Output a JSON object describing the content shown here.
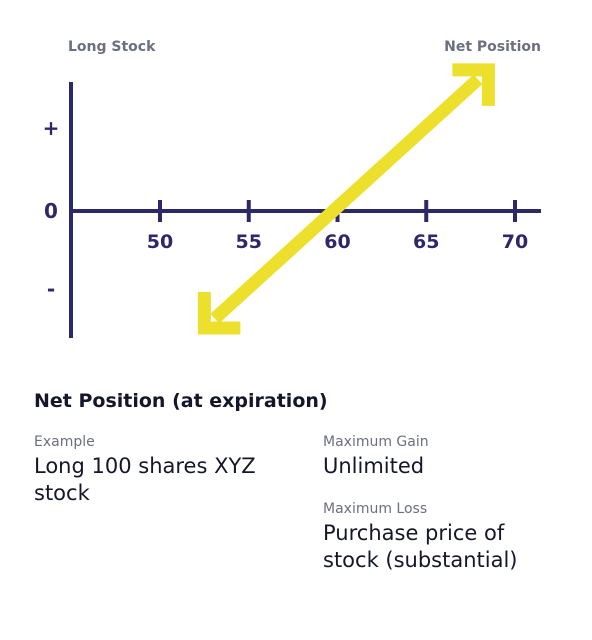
{
  "chart_data": {
    "type": "line",
    "title": "Long Stock",
    "legend_label": "Net Position",
    "y_ticks": [
      "+",
      "0",
      "-"
    ],
    "x_ticks": [
      50,
      55,
      60,
      65,
      70
    ],
    "series": [
      {
        "name": "Net Position",
        "x": [
          52.5,
          68.5
        ],
        "y": [
          -1.5,
          1.7
        ]
      }
    ],
    "breakeven": 60,
    "arrows": "both-ends",
    "line_color": "#ede02c",
    "axis_color": "#2d2867"
  },
  "info": {
    "heading": "Net Position (at expiration)",
    "example_label": "Example",
    "example_value": "Long 100 shares XYZ stock",
    "max_gain_label": "Maximum Gain",
    "max_gain_value": "Unlimited",
    "max_loss_label": "Maximum Loss",
    "max_loss_value": "Purchase price of stock (substantial)"
  }
}
